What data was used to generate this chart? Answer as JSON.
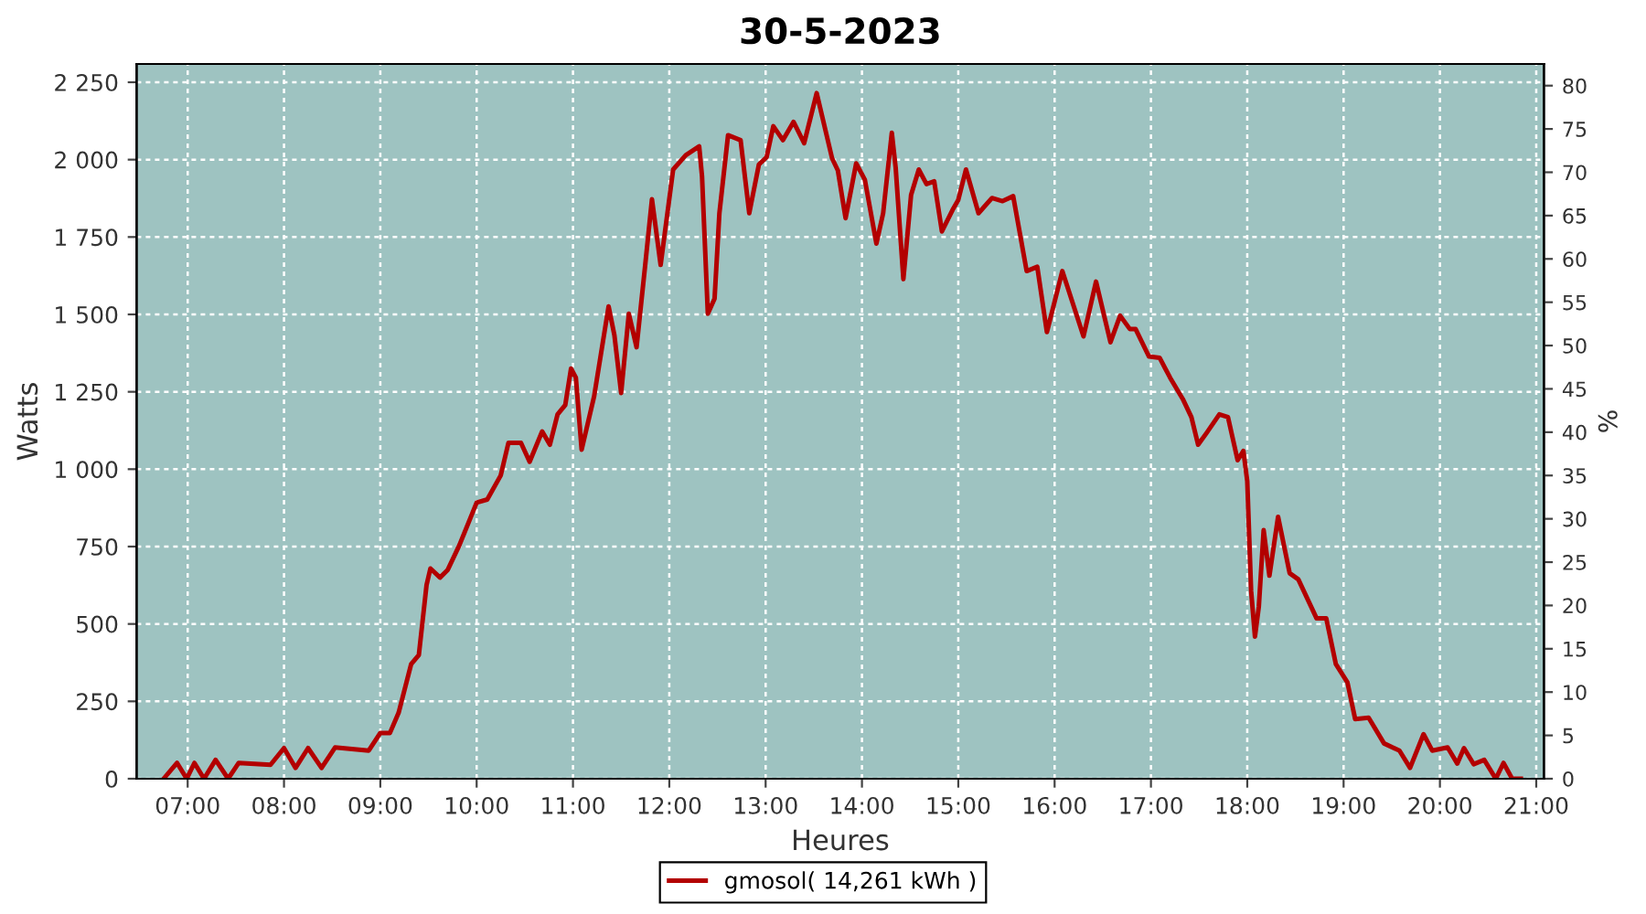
{
  "chart_data": {
    "type": "line",
    "title": "30-5-2023",
    "xlabel": "Heures",
    "ylabel": "Watts",
    "y2label": "%",
    "xlim": [
      6.47,
      21.08
    ],
    "xticks": [
      {
        "value": 7,
        "label": "07:00"
      },
      {
        "value": 8,
        "label": "08:00"
      },
      {
        "value": 9,
        "label": "09:00"
      },
      {
        "value": 10,
        "label": "10:00"
      },
      {
        "value": 11,
        "label": "11:00"
      },
      {
        "value": 12,
        "label": "12:00"
      },
      {
        "value": 13,
        "label": "13:00"
      },
      {
        "value": 14,
        "label": "14:00"
      },
      {
        "value": 15,
        "label": "15:00"
      },
      {
        "value": 16,
        "label": "16:00"
      },
      {
        "value": 17,
        "label": "17:00"
      },
      {
        "value": 18,
        "label": "18:00"
      },
      {
        "value": 19,
        "label": "19:00"
      },
      {
        "value": 20,
        "label": "20:00"
      },
      {
        "value": 21,
        "label": "21:00"
      }
    ],
    "ylim": [
      0,
      2309
    ],
    "yticks": [
      0,
      250,
      500,
      750,
      {
        "value": 1000,
        "label": "1 000"
      },
      {
        "value": 1250,
        "label": "1 250"
      },
      {
        "value": 1500,
        "label": "1 500"
      },
      {
        "value": 1750,
        "label": "1 750"
      },
      {
        "value": 2000,
        "label": "2 000"
      },
      {
        "value": 2250,
        "label": "2 250"
      }
    ],
    "y2lim": [
      0,
      82.5
    ],
    "y2ticks": [
      0,
      5,
      10,
      15,
      20,
      25,
      30,
      35,
      40,
      45,
      50,
      55,
      60,
      65,
      70,
      75,
      80
    ],
    "grid": true,
    "legend": "bottom",
    "line_style": "solid",
    "marker": "none",
    "series": [
      {
        "name": "gmosol( 14,261 kWh )",
        "color": "#b30000",
        "x": [
          6.75,
          6.89,
          6.99,
          7.07,
          7.17,
          7.29,
          7.42,
          7.53,
          7.86,
          8.0,
          8.12,
          8.25,
          8.39,
          8.53,
          8.88,
          9.0,
          9.1,
          9.19,
          9.32,
          9.4,
          9.48,
          9.52,
          9.62,
          9.7,
          9.82,
          10.0,
          10.11,
          10.25,
          10.33,
          10.46,
          10.55,
          10.68,
          10.76,
          10.84,
          10.92,
          10.98,
          11.03,
          11.09,
          11.22,
          11.37,
          11.43,
          11.5,
          11.58,
          11.66,
          11.75,
          11.82,
          11.91,
          12.04,
          12.17,
          12.31,
          12.34,
          12.4,
          12.47,
          12.52,
          12.61,
          12.74,
          12.83,
          12.93,
          13.01,
          13.08,
          13.18,
          13.29,
          13.4,
          13.53,
          13.69,
          13.75,
          13.83,
          13.94,
          14.03,
          14.15,
          14.22,
          14.31,
          14.35,
          14.43,
          14.51,
          14.59,
          14.67,
          14.75,
          14.83,
          14.94,
          15.0,
          15.08,
          15.21,
          15.35,
          15.46,
          15.57,
          15.71,
          15.82,
          15.92,
          16.08,
          16.3,
          16.43,
          16.58,
          16.68,
          16.78,
          16.84,
          16.98,
          17.09,
          17.2,
          17.33,
          17.42,
          17.49,
          17.58,
          17.71,
          17.8,
          17.9,
          17.96,
          18.0,
          18.04,
          18.08,
          18.12,
          18.17,
          18.23,
          18.32,
          18.44,
          18.53,
          18.72,
          18.82,
          18.92,
          19.04,
          19.12,
          19.26,
          19.42,
          19.58,
          19.69,
          19.83,
          19.92,
          20.08,
          20.18,
          20.25,
          20.35,
          20.46,
          20.58,
          20.66,
          20.75,
          20.84
        ],
        "values": [
          0,
          51,
          0,
          51,
          0,
          61,
          0,
          51,
          45,
          99,
          35,
          99,
          35,
          101,
          91,
          148,
          148,
          213,
          370,
          400,
          626,
          679,
          650,
          675,
          754,
          892,
          902,
          980,
          1085,
          1085,
          1024,
          1122,
          1079,
          1177,
          1207,
          1325,
          1296,
          1063,
          1236,
          1526,
          1433,
          1246,
          1502,
          1394,
          1660,
          1872,
          1660,
          1968,
          2014,
          2043,
          1945,
          1502,
          1551,
          1827,
          2079,
          2063,
          1827,
          1984,
          2008,
          2108,
          2063,
          2122,
          2053,
          2215,
          2004,
          1965,
          1811,
          1988,
          1935,
          1729,
          1827,
          2087,
          1974,
          1614,
          1886,
          1968,
          1921,
          1930,
          1768,
          1837,
          1870,
          1968,
          1827,
          1876,
          1866,
          1882,
          1640,
          1654,
          1443,
          1640,
          1429,
          1606,
          1410,
          1496,
          1453,
          1453,
          1364,
          1360,
          1295,
          1227,
          1168,
          1079,
          1118,
          1177,
          1168,
          1029,
          1059,
          961,
          607,
          459,
          556,
          803,
          656,
          846,
          664,
          644,
          518,
          518,
          370,
          311,
          193,
          197,
          114,
          91,
          35,
          144,
          91,
          101,
          49,
          99,
          47,
          61,
          0,
          51,
          0,
          0
        ]
      }
    ]
  }
}
